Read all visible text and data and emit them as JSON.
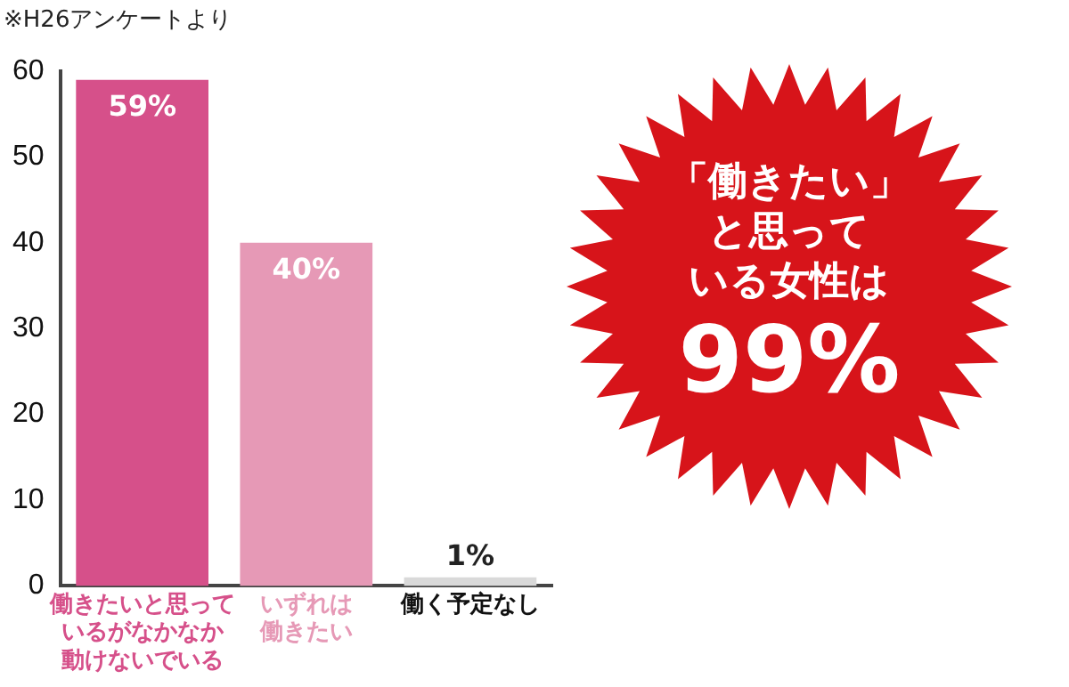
{
  "chart_data": {
    "type": "bar",
    "title": "※H26アンケートより",
    "categories": [
      "働きたいと思っているがなかなか動けないでいる",
      "いずれは働きたい",
      "働く予定なし"
    ],
    "values": [
      59,
      40,
      1
    ],
    "colors": [
      "#d6508a",
      "#e699b6",
      "#d9d9d9"
    ],
    "value_labels": [
      "59%",
      "40%",
      "1%"
    ],
    "ylim": [
      0,
      60
    ],
    "yticks": [
      0,
      10,
      20,
      30,
      40,
      50,
      60
    ],
    "grid": false,
    "legend": false,
    "annotations": [
      "「働きたい」と思っている女性は99%"
    ]
  }
}
